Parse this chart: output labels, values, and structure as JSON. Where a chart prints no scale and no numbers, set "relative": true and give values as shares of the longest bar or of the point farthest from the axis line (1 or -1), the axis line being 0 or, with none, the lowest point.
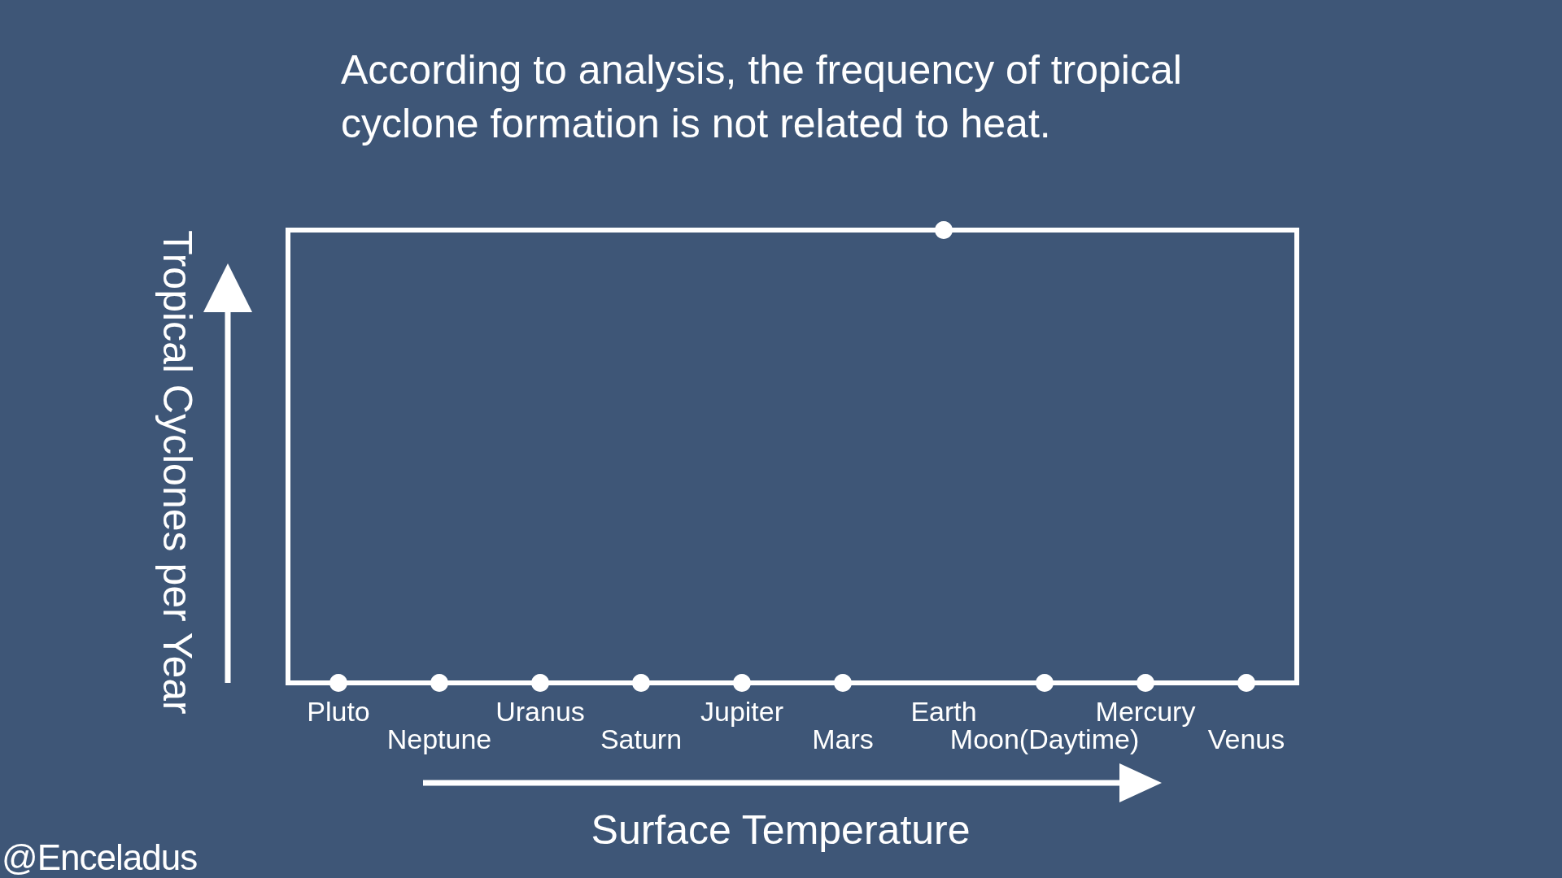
{
  "chart_data": {
    "type": "scatter",
    "title": "According to analysis, the frequency of tropical cyclone formation is not related to heat.",
    "xlabel": "Surface Temperature",
    "ylabel": "Tropical Cyclones per Year",
    "annotations": [
      "@Enceladus"
    ],
    "relative": true,
    "marker": "circle",
    "categories": [
      "Pluto",
      "Neptune",
      "Uranus",
      "Saturn",
      "Jupiter",
      "Mars",
      "Earth",
      "Moon(Daytime)",
      "Mercury",
      "Venus"
    ],
    "series": [
      {
        "color": "#ffffff",
        "values": [
          0,
          0,
          0,
          0,
          0,
          0,
          1,
          0,
          0,
          0
        ]
      }
    ]
  }
}
